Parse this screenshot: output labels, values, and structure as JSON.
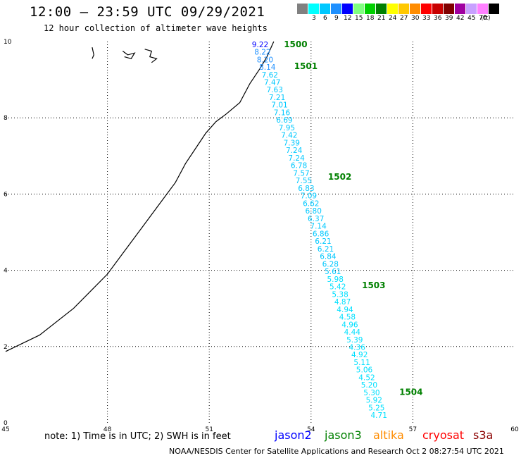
{
  "title": "12:00 – 23:59 UTC 09/29/2021",
  "subtitle": "12 hour collection of altimeter wave heights",
  "legend": {
    "unit": "(ft)",
    "bins": [
      {
        "label": "",
        "color": "#808080"
      },
      {
        "label": "3",
        "color": "#00ffff"
      },
      {
        "label": "6",
        "color": "#00c8ff"
      },
      {
        "label": "9",
        "color": "#1e90ff"
      },
      {
        "label": "12",
        "color": "#0000ff"
      },
      {
        "label": "15",
        "color": "#80ff80"
      },
      {
        "label": "18",
        "color": "#00d000"
      },
      {
        "label": "21",
        "color": "#008000"
      },
      {
        "label": "24",
        "color": "#ffff00"
      },
      {
        "label": "27",
        "color": "#ffc800"
      },
      {
        "label": "30",
        "color": "#ff8c00"
      },
      {
        "label": "33",
        "color": "#ff0000"
      },
      {
        "label": "36",
        "color": "#c80000"
      },
      {
        "label": "39",
        "color": "#800000"
      },
      {
        "label": "42",
        "color": "#a000a0"
      },
      {
        "label": "45",
        "color": "#c8a0ff"
      },
      {
        "label": "70",
        "color": "#ff80ff"
      },
      {
        "label": "",
        "color": "#000000"
      }
    ]
  },
  "map": {
    "lon_range": [
      45,
      60
    ],
    "lat_range": [
      0,
      10
    ],
    "x_ticks": [
      "45",
      "48",
      "51",
      "54",
      "57",
      "60"
    ],
    "y_ticks": [
      "0",
      "2",
      "4",
      "6",
      "8",
      "10"
    ],
    "gridlines": true
  },
  "track": {
    "times": [
      {
        "label": "1500",
        "lon": 53.2,
        "lat": 9.93
      },
      {
        "label": "1501",
        "lon": 53.5,
        "lat": 9.35
      },
      {
        "label": "1502",
        "lon": 54.5,
        "lat": 6.45
      },
      {
        "label": "1503",
        "lon": 55.5,
        "lat": 3.6
      },
      {
        "label": "1504",
        "lon": 56.6,
        "lat": 0.8
      }
    ],
    "heights": [
      "9.22",
      "8.22",
      "8.20",
      "8.14",
      "7.62",
      "7.47",
      "7.63",
      "7.21",
      "7.01",
      "7.16",
      "6.69",
      "7.95",
      "7.42",
      "7.39",
      "7.24",
      "7.24",
      "6.78",
      "7.57",
      "7.55",
      "6.83",
      "7.09",
      "6.62",
      "6.80",
      "6.37",
      "7.14",
      "6.86",
      "6.21",
      "6.21",
      "6.84",
      "6.28",
      "5.61",
      "5.98",
      "5.42",
      "5.38",
      "4.87",
      "4.94",
      "4.58",
      "4.96",
      "4.44",
      "5.39",
      "4.36",
      "4.92",
      "5.11",
      "5.06",
      "4.52",
      "5.20",
      "5.30",
      "5.92",
      "5.25",
      "4.71"
    ],
    "height_colors": [
      "#0000ff",
      "#1e90ff",
      "#1e90ff",
      "#1e90ff",
      "#00c8ff",
      "#00c8ff",
      "#00c8ff",
      "#00c8ff",
      "#00c8ff",
      "#00c8ff",
      "#00c8ff",
      "#00c8ff",
      "#00c8ff",
      "#00c8ff",
      "#00c8ff",
      "#00c8ff",
      "#00c8ff",
      "#00c8ff",
      "#00c8ff",
      "#00c8ff",
      "#00c8ff",
      "#00c8ff",
      "#00c8ff",
      "#00c8ff",
      "#00c8ff",
      "#00c8ff",
      "#00c8ff",
      "#00c8ff",
      "#00c8ff",
      "#00c8ff",
      "#00c8ff",
      "#00e0ff",
      "#00e0ff",
      "#00e0ff",
      "#00e0ff",
      "#00e0ff",
      "#00e0ff",
      "#00e0ff",
      "#00e0ff",
      "#00e0ff",
      "#00e0ff",
      "#00e0ff",
      "#00e0ff",
      "#00e0ff",
      "#00e0ff",
      "#00e0ff",
      "#00e0ff",
      "#00e0ff",
      "#00e0ff",
      "#00e0ff"
    ],
    "start": {
      "lon": 52.5,
      "lat": 9.93
    },
    "end": {
      "lon": 56.0,
      "lat": 0.2
    },
    "time_label_color": "#008000"
  },
  "coastline": [
    [
      45.0,
      1.87
    ],
    [
      46.0,
      2.3
    ],
    [
      47.0,
      3.0
    ],
    [
      48.0,
      3.9
    ],
    [
      48.5,
      4.5
    ],
    [
      49.0,
      5.1
    ],
    [
      49.5,
      5.7
    ],
    [
      50.0,
      6.3
    ],
    [
      50.3,
      6.8
    ],
    [
      50.6,
      7.2
    ],
    [
      50.9,
      7.6
    ],
    [
      51.2,
      7.9
    ],
    [
      51.5,
      8.1
    ],
    [
      51.9,
      8.4
    ],
    [
      52.2,
      8.9
    ],
    [
      52.5,
      9.3
    ],
    [
      52.7,
      9.6
    ],
    [
      52.9,
      10.0
    ]
  ],
  "islands": [
    [
      [
        47.55,
        9.85
      ],
      [
        47.6,
        9.65
      ],
      [
        47.55,
        9.55
      ]
    ],
    [
      [
        48.45,
        9.75
      ],
      [
        48.6,
        9.65
      ],
      [
        48.8,
        9.7
      ],
      [
        48.7,
        9.55
      ],
      [
        48.5,
        9.6
      ]
    ],
    [
      [
        49.1,
        9.8
      ],
      [
        49.3,
        9.75
      ],
      [
        49.25,
        9.6
      ],
      [
        49.45,
        9.55
      ],
      [
        49.3,
        9.45
      ]
    ]
  ],
  "note": "note:  1) Time is in UTC; 2) SWH is in feet",
  "satellites": [
    {
      "name": "jason2",
      "color": "#0000ff"
    },
    {
      "name": "jason3",
      "color": "#008000"
    },
    {
      "name": "altika",
      "color": "#ff8c00"
    },
    {
      "name": "cryosat",
      "color": "#ff0000"
    },
    {
      "name": "s3a",
      "color": "#8b0000"
    }
  ],
  "credit": "NOAA/NESDIS Center for Satellite Applications and Research    Oct  2 08:27:54 UTC 2021"
}
